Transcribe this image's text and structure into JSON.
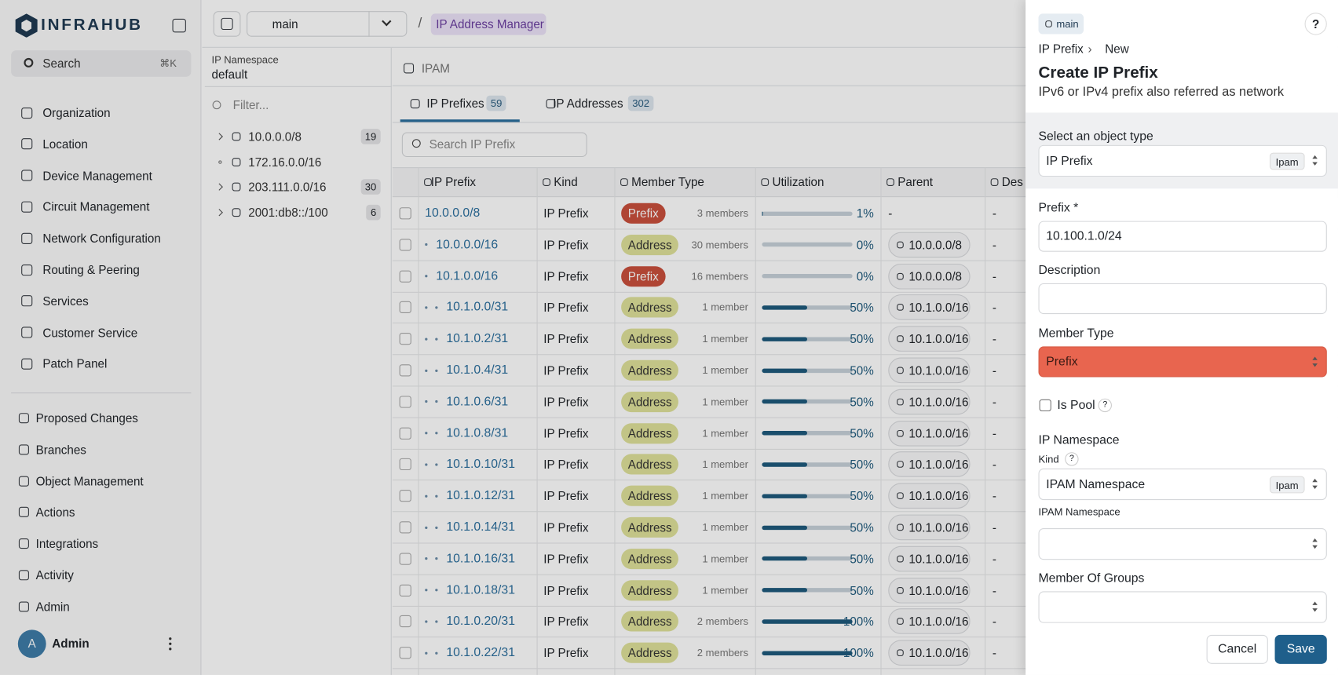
{
  "sidebar": {
    "logo": "INFRAHUB",
    "search": "Search",
    "shortcut": "⌘K",
    "menu": [
      "Organization",
      "Location",
      "Device Management",
      "Circuit Management",
      "Network Configuration",
      "Routing & Peering",
      "Services",
      "Customer Service",
      "Patch Panel"
    ],
    "secondary": [
      "Proposed Changes",
      "Branches",
      "Object Management",
      "Actions",
      "Integrations",
      "Activity",
      "Admin"
    ],
    "user": {
      "initial": "A",
      "name": "Admin"
    }
  },
  "topbar": {
    "branch": "main",
    "separator": "/",
    "breadcrumb": "IP Address Manager"
  },
  "namespace": {
    "label": "IP Namespace",
    "value": "default",
    "filter": "Filter...",
    "tree": [
      {
        "prefix": "10.0.0.0/8",
        "count": 19
      },
      {
        "prefix": "172.16.0.0/16"
      },
      {
        "prefix": "203.111.0.0/16",
        "count": 30
      },
      {
        "prefix": "2001:db8::/100",
        "count": 6
      }
    ]
  },
  "main": {
    "breadcrumb": "IPAM",
    "tabs": [
      {
        "label": "IP Prefixes",
        "count": 59
      },
      {
        "label": "IP Addresses",
        "count": 302
      }
    ],
    "search": "Search IP Prefix",
    "table": {
      "columns": [
        "IP Prefix",
        "Kind",
        "Member Type",
        "Utilization",
        "Parent",
        "Des"
      ],
      "rows": [
        {
          "prefix": "10.0.0.0/8",
          "level": 0,
          "kind": "IP Prefix",
          "member_type": "Prefix",
          "members": "3 members",
          "utilization": {
            "value": 1,
            "label": "1%"
          },
          "parent": "-",
          "description": "-"
        },
        {
          "prefix": "10.0.0.0/16",
          "level": 1,
          "kind": "IP Prefix",
          "member_type": "Address",
          "members": "30 members",
          "utilization": {
            "value": 0,
            "label": "0%"
          },
          "parent": "10.0.0.0/8",
          "description": "-"
        },
        {
          "prefix": "10.1.0.0/16",
          "level": 1,
          "kind": "IP Prefix",
          "member_type": "Prefix",
          "members": "16 members",
          "utilization": {
            "value": 0,
            "label": "0%"
          },
          "parent": "10.0.0.0/8",
          "description": "-"
        },
        {
          "prefix": "10.1.0.0/31",
          "level": 2,
          "kind": "IP Prefix",
          "member_type": "Address",
          "members": "1 member",
          "utilization": {
            "value": 50,
            "label": "50%"
          },
          "parent": "10.1.0.0/16",
          "description": "-"
        },
        {
          "prefix": "10.1.0.2/31",
          "level": 2,
          "kind": "IP Prefix",
          "member_type": "Address",
          "members": "1 member",
          "utilization": {
            "value": 50,
            "label": "50%"
          },
          "parent": "10.1.0.0/16",
          "description": "-"
        },
        {
          "prefix": "10.1.0.4/31",
          "level": 2,
          "kind": "IP Prefix",
          "member_type": "Address",
          "members": "1 member",
          "utilization": {
            "value": 50,
            "label": "50%"
          },
          "parent": "10.1.0.0/16",
          "description": "-"
        },
        {
          "prefix": "10.1.0.6/31",
          "level": 2,
          "kind": "IP Prefix",
          "member_type": "Address",
          "members": "1 member",
          "utilization": {
            "value": 50,
            "label": "50%"
          },
          "parent": "10.1.0.0/16",
          "description": "-"
        },
        {
          "prefix": "10.1.0.8/31",
          "level": 2,
          "kind": "IP Prefix",
          "member_type": "Address",
          "members": "1 member",
          "utilization": {
            "value": 50,
            "label": "50%"
          },
          "parent": "10.1.0.0/16",
          "description": "-"
        },
        {
          "prefix": "10.1.0.10/31",
          "level": 2,
          "kind": "IP Prefix",
          "member_type": "Address",
          "members": "1 member",
          "utilization": {
            "value": 50,
            "label": "50%"
          },
          "parent": "10.1.0.0/16",
          "description": "-"
        },
        {
          "prefix": "10.1.0.12/31",
          "level": 2,
          "kind": "IP Prefix",
          "member_type": "Address",
          "members": "1 member",
          "utilization": {
            "value": 50,
            "label": "50%"
          },
          "parent": "10.1.0.0/16",
          "description": "-"
        },
        {
          "prefix": "10.1.0.14/31",
          "level": 2,
          "kind": "IP Prefix",
          "member_type": "Address",
          "members": "1 member",
          "utilization": {
            "value": 50,
            "label": "50%"
          },
          "parent": "10.1.0.0/16",
          "description": "-"
        },
        {
          "prefix": "10.1.0.16/31",
          "level": 2,
          "kind": "IP Prefix",
          "member_type": "Address",
          "members": "1 member",
          "utilization": {
            "value": 50,
            "label": "50%"
          },
          "parent": "10.1.0.0/16",
          "description": "-"
        },
        {
          "prefix": "10.1.0.18/31",
          "level": 2,
          "kind": "IP Prefix",
          "member_type": "Address",
          "members": "1 member",
          "utilization": {
            "value": 50,
            "label": "50%"
          },
          "parent": "10.1.0.0/16",
          "description": "-"
        },
        {
          "prefix": "10.1.0.20/31",
          "level": 2,
          "kind": "IP Prefix",
          "member_type": "Address",
          "members": "2 members",
          "utilization": {
            "value": 100,
            "label": "100%"
          },
          "parent": "10.1.0.0/16",
          "description": "-"
        },
        {
          "prefix": "10.1.0.22/31",
          "level": 2,
          "kind": "IP Prefix",
          "member_type": "Address",
          "members": "2 members",
          "utilization": {
            "value": 100,
            "label": "100%"
          },
          "parent": "10.1.0.0/16",
          "description": "-"
        }
      ]
    }
  },
  "panel": {
    "branch": "main",
    "help": "?",
    "breadcrumb": [
      "IP Prefix",
      "›",
      "New"
    ],
    "title": "Create IP Prefix",
    "subtitle": "IPv6 or IPv4 prefix also referred as network",
    "object_type": {
      "label": "Select an object type",
      "value": "IP Prefix",
      "badge": "Ipam"
    },
    "prefix": {
      "label": "Prefix *",
      "value": "10.100.1.0/24"
    },
    "description": {
      "label": "Description"
    },
    "member_type": {
      "label": "Member Type",
      "value": "Prefix"
    },
    "is_pool": {
      "label": "Is Pool",
      "help": "?"
    },
    "ip_namespace": {
      "label": "IP Namespace",
      "kind_label": "Kind",
      "kind_help": "?",
      "kind_value": "IPAM Namespace",
      "kind_badge": "Ipam",
      "field_label": "IPAM Namespace"
    },
    "member_of_groups": {
      "label": "Member Of Groups"
    },
    "buttons": {
      "cancel": "Cancel",
      "save": "Save"
    }
  }
}
